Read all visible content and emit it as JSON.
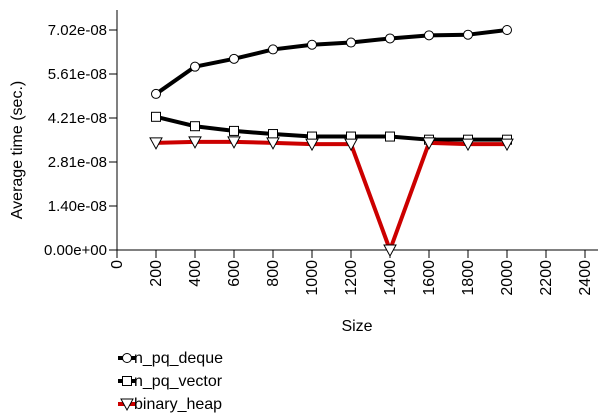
{
  "chart_data": {
    "type": "line",
    "title": "",
    "xlabel": "Size",
    "ylabel": "Average time (sec.)",
    "xlim": [
      0,
      2500
    ],
    "ylim": [
      0,
      7.02e-08
    ],
    "x_ticks": [
      0,
      200,
      400,
      600,
      800,
      1000,
      1200,
      1400,
      1600,
      1800,
      2000,
      2200,
      2400
    ],
    "x_tick_labels": [
      "0",
      "200",
      "400",
      "600",
      "800",
      "1000",
      "1200",
      "1400",
      "1600",
      "1800",
      "2000",
      "2200",
      "2400"
    ],
    "y_ticks": [
      0,
      1.404e-08,
      2.808e-08,
      4.212e-08,
      5.616e-08,
      7.02e-08
    ],
    "y_tick_labels": [
      "0.00e+00",
      "1.40e-08",
      "2.81e-08",
      "4.21e-08",
      "5.61e-08",
      "7.02e-08"
    ],
    "legend_position": "bottom-left",
    "series": [
      {
        "name": "n_pq_deque",
        "marker": "circle",
        "color": "#000000",
        "x": [
          200,
          400,
          600,
          800,
          1000,
          1200,
          1400,
          1600,
          1800,
          2000
        ],
        "values": [
          4.98e-08,
          5.85e-08,
          6.1e-08,
          6.4e-08,
          6.55e-08,
          6.62e-08,
          6.75e-08,
          6.85e-08,
          6.87e-08,
          7.02e-08
        ]
      },
      {
        "name": "n_pq_vector",
        "marker": "square",
        "color": "#000000",
        "x": [
          200,
          400,
          600,
          800,
          1000,
          1200,
          1400,
          1600,
          1800,
          2000
        ],
        "values": [
          4.25e-08,
          3.95e-08,
          3.8e-08,
          3.7e-08,
          3.62e-08,
          3.62e-08,
          3.62e-08,
          3.52e-08,
          3.52e-08,
          3.52e-08
        ]
      },
      {
        "name": "binary_heap",
        "marker": "triangle-down",
        "color": "#cc0000",
        "x": [
          200,
          400,
          600,
          800,
          1000,
          1200,
          1400,
          1600,
          1800,
          2000
        ],
        "values": [
          3.42e-08,
          3.45e-08,
          3.45e-08,
          3.42e-08,
          3.38e-08,
          3.38e-08,
          0.0,
          3.42e-08,
          3.38e-08,
          3.38e-08
        ]
      }
    ]
  }
}
